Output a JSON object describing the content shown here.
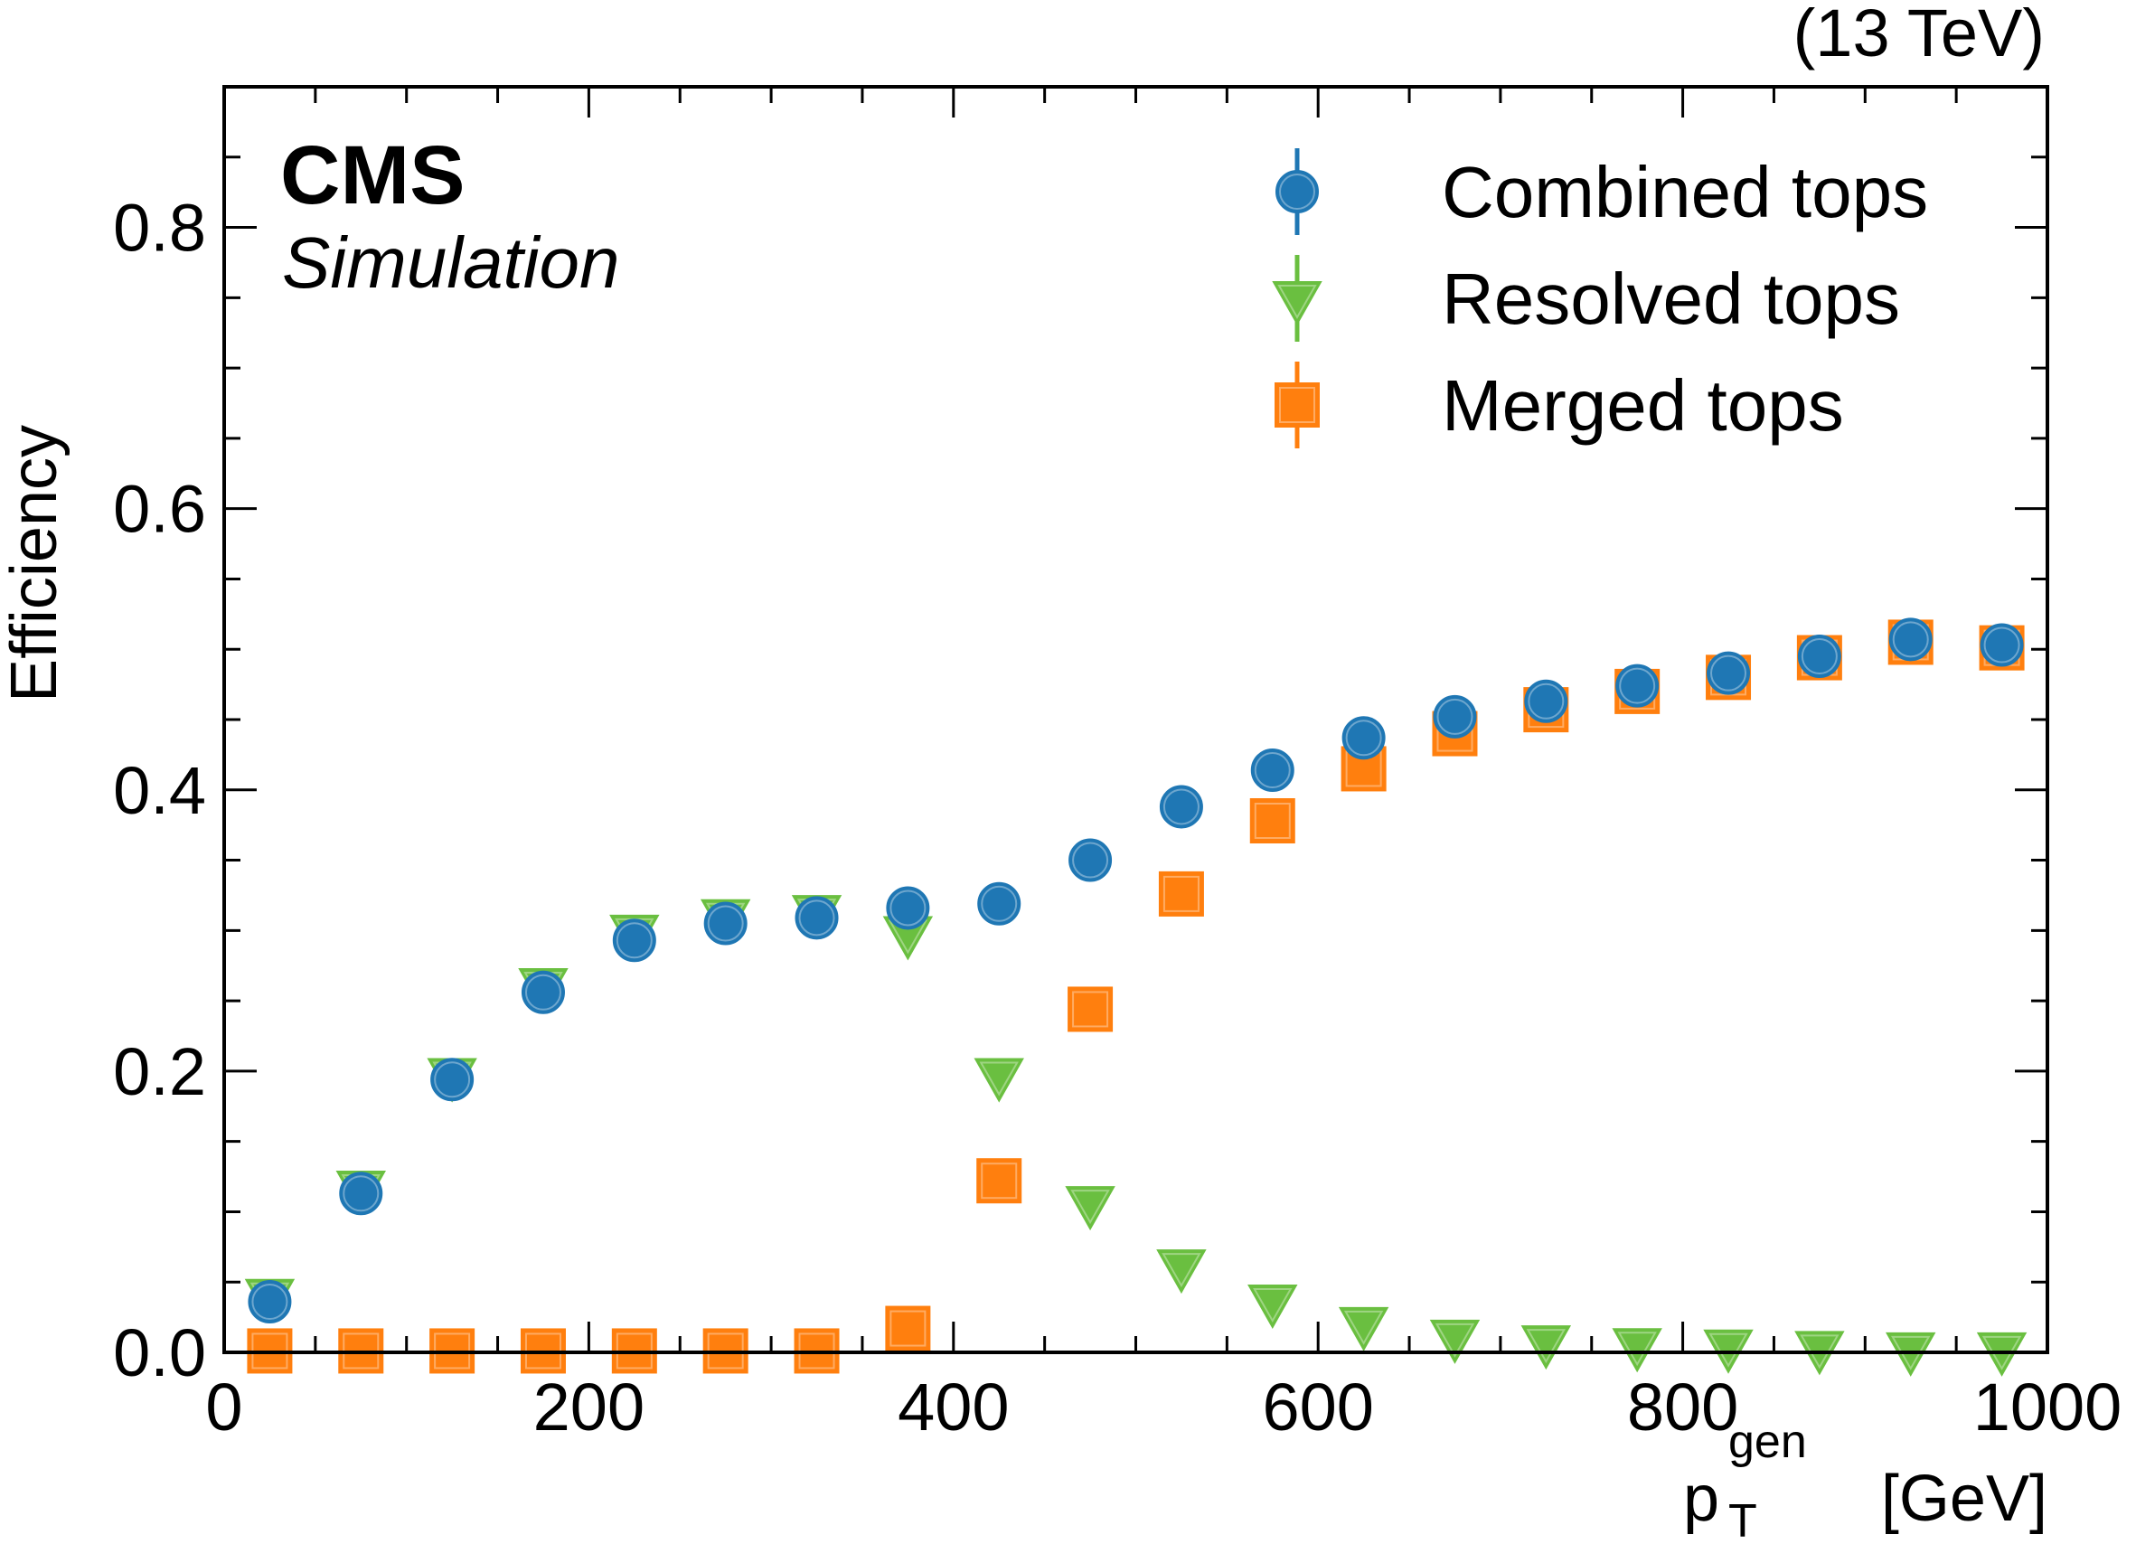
{
  "chart_data": {
    "type": "scatter",
    "title": "CMS",
    "subtitle": "Simulation",
    "energy_label": "(13 TeV)",
    "xlabel": "[GeV]",
    "xlabel_symbol": "p",
    "xlabel_sub": "T",
    "xlabel_sup": "gen",
    "ylabel": "Efficiency",
    "xlim": [
      0,
      1000
    ],
    "ylim": [
      0,
      0.9
    ],
    "x_ticks": [
      0,
      200,
      400,
      600,
      800,
      1000
    ],
    "x_tick_labels": [
      "0",
      "200",
      "400",
      "600",
      "800",
      "1000"
    ],
    "y_ticks": [
      0,
      0.2,
      0.4,
      0.6,
      0.8
    ],
    "y_tick_labels": [
      "0.0",
      "0.2",
      "0.4",
      "0.6",
      "0.8"
    ],
    "legend_position": "top-right",
    "x": [
      25,
      75,
      125,
      175,
      225,
      275,
      325,
      375,
      425,
      475,
      525,
      575,
      625,
      675,
      725,
      775,
      825,
      875,
      925,
      975
    ],
    "series": [
      {
        "name": "Combined tops",
        "marker": "circle",
        "color": "#1f77b4",
        "values": [
          0.036,
          0.113,
          0.194,
          0.256,
          0.293,
          0.305,
          0.309,
          0.316,
          0.319,
          0.35,
          0.388,
          0.414,
          0.437,
          0.452,
          0.463,
          0.474,
          0.483,
          0.495,
          0.507,
          0.503
        ]
      },
      {
        "name": "Resolved tops",
        "marker": "triangle-down",
        "color": "#6abf40",
        "values": [
          0.04,
          0.117,
          0.197,
          0.261,
          0.299,
          0.31,
          0.313,
          0.298,
          0.197,
          0.106,
          0.061,
          0.036,
          0.02,
          0.011,
          0.007,
          0.005,
          0.004,
          0.003,
          0.002,
          0.002
        ]
      },
      {
        "name": "Merged tops",
        "marker": "square",
        "color": "#ff7f0e",
        "values": [
          0.001,
          0.001,
          0.001,
          0.001,
          0.001,
          0.001,
          0.001,
          0.017,
          0.122,
          0.244,
          0.326,
          0.378,
          0.415,
          0.44,
          0.457,
          0.47,
          0.48,
          0.494,
          0.505,
          0.501
        ]
      }
    ]
  }
}
